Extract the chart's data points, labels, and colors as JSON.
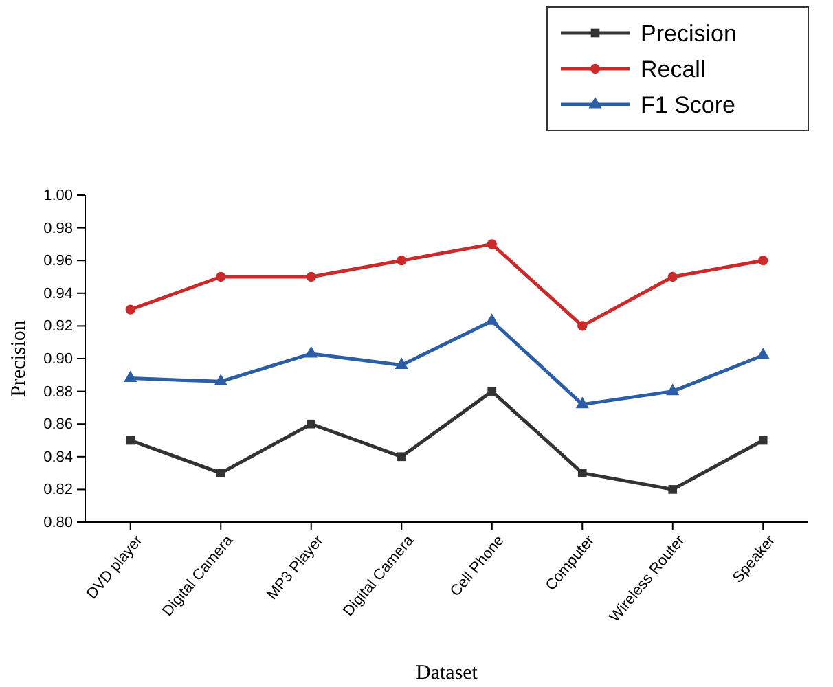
{
  "chart_data": {
    "type": "line",
    "xlabel": "Dataset",
    "ylabel": "Precision",
    "categories": [
      "DVD player",
      "Digital Camera",
      "MP3 Player",
      "Digital Camera",
      "Cell Phone",
      "Computer",
      "Wireless Router",
      "Speaker"
    ],
    "series": [
      {
        "name": "Precision",
        "color": "#333333",
        "marker": "square",
        "values": [
          0.85,
          0.83,
          0.86,
          0.84,
          0.88,
          0.83,
          0.82,
          0.85
        ]
      },
      {
        "name": "Recall",
        "color": "#cc2a2a",
        "marker": "circle",
        "values": [
          0.93,
          0.95,
          0.95,
          0.96,
          0.97,
          0.92,
          0.95,
          0.96
        ]
      },
      {
        "name": "F1 Score",
        "color": "#2c5ea8",
        "marker": "triangle",
        "values": [
          0.888,
          0.886,
          0.903,
          0.896,
          0.923,
          0.872,
          0.88,
          0.902
        ]
      }
    ],
    "ylim": [
      0.8,
      1.0
    ],
    "yticks": [
      {
        "value": 0.8,
        "label": "0.80"
      },
      {
        "value": 0.82,
        "label": "0.82"
      },
      {
        "value": 0.84,
        "label": "0.84"
      },
      {
        "value": 0.86,
        "label": "0.86"
      },
      {
        "value": 0.88,
        "label": "0.88"
      },
      {
        "value": 0.9,
        "label": "0.90"
      },
      {
        "value": 0.92,
        "label": "0.92"
      },
      {
        "value": 0.94,
        "label": "0.94"
      },
      {
        "value": 0.96,
        "label": "0.96"
      },
      {
        "value": 0.98,
        "label": "0.98"
      },
      {
        "value": 1.0,
        "label": "1.00"
      }
    ],
    "legend": "top right",
    "line_style": "solid"
  }
}
